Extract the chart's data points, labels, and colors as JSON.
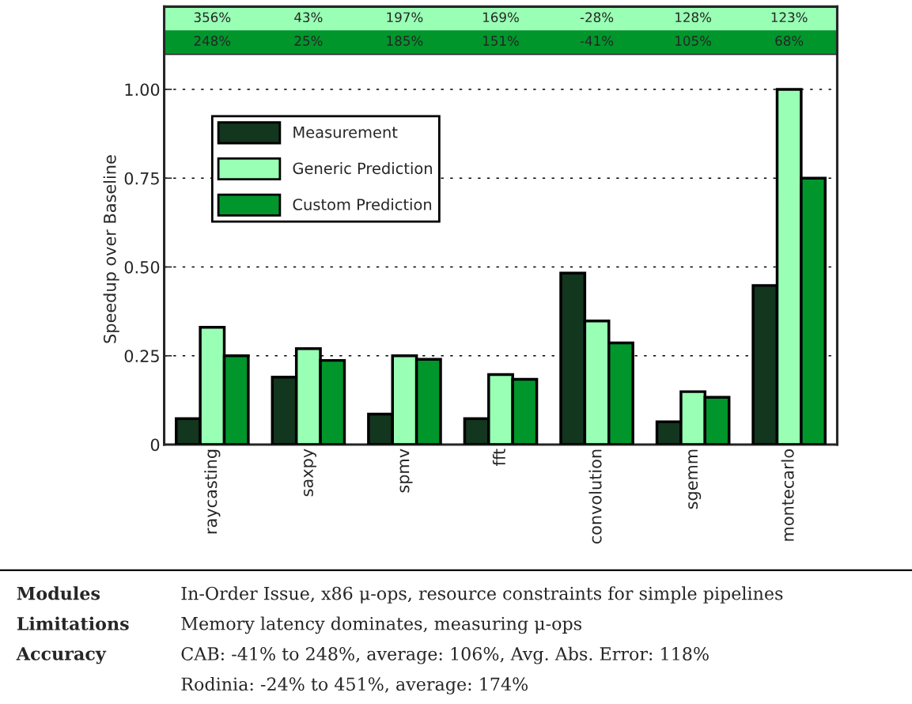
{
  "chart_data": {
    "type": "bar",
    "ylabel": "Speedup over Baseline",
    "categories": [
      "raycasting",
      "saxpy",
      "spmv",
      "fft",
      "convolution",
      "sgemm",
      "montecarlo"
    ],
    "series": [
      {
        "name": "Measurement",
        "color": "#12361e",
        "values": [
          0.073,
          0.19,
          0.086,
          0.073,
          0.483,
          0.064,
          0.448
        ]
      },
      {
        "name": "Generic Prediction",
        "color": "#99ffb4",
        "values": [
          0.33,
          0.27,
          0.25,
          0.197,
          0.348,
          0.149,
          1.0
        ]
      },
      {
        "name": "Custom Prediction",
        "color": "#00962c",
        "values": [
          0.25,
          0.237,
          0.24,
          0.184,
          0.286,
          0.133,
          0.75
        ]
      }
    ],
    "ylim": [
      0,
      1.1
    ],
    "yticks": [
      {
        "value": 0,
        "label": "0"
      },
      {
        "value": 0.25,
        "label": "0.25"
      },
      {
        "value": 0.5,
        "label": "0.50"
      },
      {
        "value": 0.75,
        "label": "0.75"
      },
      {
        "value": 1.0,
        "label": "1.00"
      }
    ],
    "grid": "y",
    "legend": "top left",
    "annotations": [
      "356%",
      "43%",
      "197%",
      "169%",
      "-28%",
      "128%",
      "123%",
      "248%",
      "25%",
      "185%",
      "151%",
      "-41%",
      "105%",
      "68%",
      "Modules",
      "In-Order Issue, x86 μ-ops, resource constraints for simple pipelines",
      "Limitations",
      "Memory latency dominates, measuring μ-ops",
      "Accuracy",
      "CAB: -41% to 248%, average: 106%, Avg. Abs. Error: 118%\nRodinia: -24% to 451%, average: 174%"
    ]
  }
}
